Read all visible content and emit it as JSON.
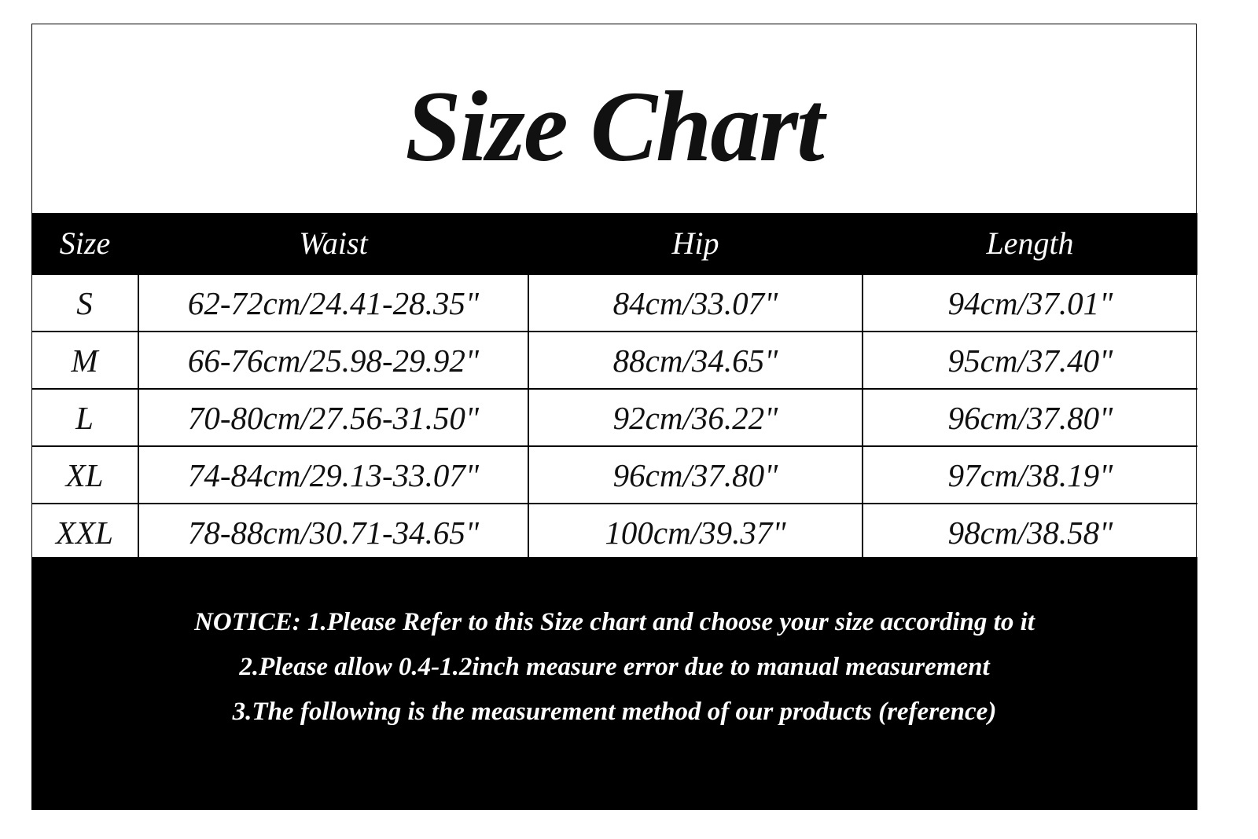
{
  "title": "Size Chart",
  "table": {
    "headers": [
      "Size",
      "Waist",
      "Hip",
      "Length"
    ],
    "rows": [
      [
        "S",
        "62-72cm/24.41-28.35\"",
        "84cm/33.07\"",
        "94cm/37.01\""
      ],
      [
        "M",
        "66-76cm/25.98-29.92\"",
        "88cm/34.65\"",
        "95cm/37.40\""
      ],
      [
        "L",
        "70-80cm/27.56-31.50\"",
        "92cm/36.22\"",
        "96cm/37.80\""
      ],
      [
        "XL",
        "74-84cm/29.13-33.07\"",
        "96cm/37.80\"",
        "97cm/38.19\""
      ],
      [
        "XXL",
        "78-88cm/30.71-34.65\"",
        "100cm/39.37\"",
        "98cm/38.58\""
      ]
    ]
  },
  "notice": [
    "NOTICE: 1.Please Refer to this Size chart and choose your size according to it",
    "2.Please allow 0.4-1.2inch measure error due to manual measurement",
    "3.The following is the measurement method of our products (reference)"
  ]
}
